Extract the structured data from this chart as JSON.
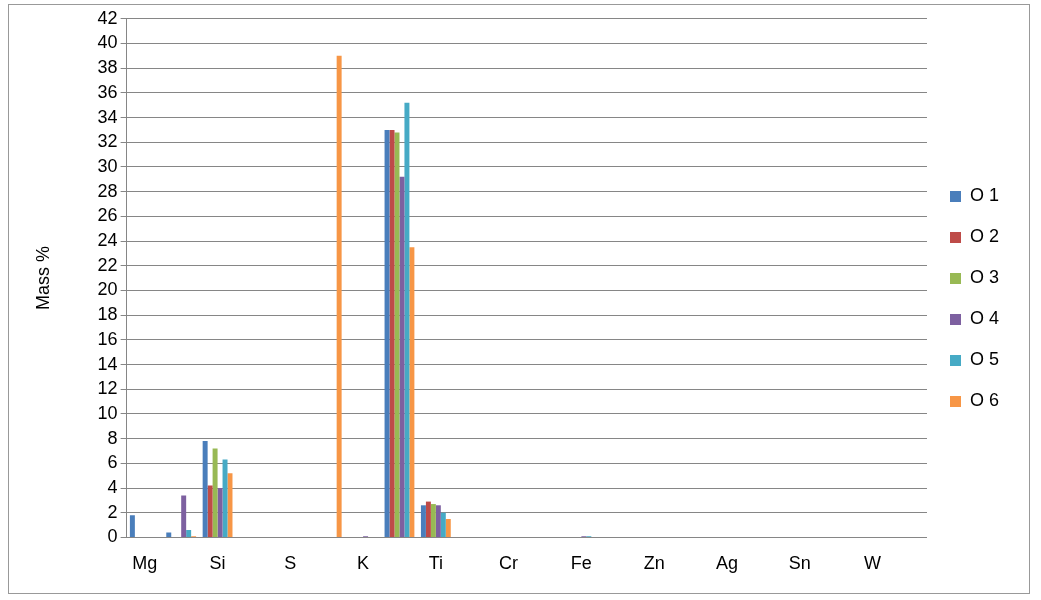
{
  "chart_data": {
    "type": "bar",
    "ylabel": "Mass %",
    "categories": [
      "Mg",
      null,
      "Si",
      null,
      "S",
      null,
      "K",
      null,
      "Ti",
      null,
      "Cr",
      null,
      "Fe",
      null,
      "Zn",
      null,
      "Ag",
      null,
      "Sn",
      null,
      "W",
      null
    ],
    "series": [
      {
        "name": "O 1",
        "color": "#4a7ebb",
        "values": [
          1.8,
          0.4,
          7.8,
          null,
          null,
          null,
          null,
          33,
          2.6,
          null,
          null,
          null,
          null,
          null,
          null,
          null,
          null,
          null,
          null,
          null,
          null,
          null
        ]
      },
      {
        "name": "O 2",
        "color": "#be4b48",
        "values": [
          null,
          null,
          4.2,
          null,
          null,
          null,
          null,
          33,
          2.9,
          null,
          null,
          null,
          null,
          null,
          null,
          null,
          null,
          null,
          null,
          null,
          null,
          null
        ]
      },
      {
        "name": "O 3",
        "color": "#98b954",
        "values": [
          null,
          null,
          7.2,
          null,
          null,
          null,
          null,
          32.8,
          2.7,
          null,
          null,
          null,
          null,
          null,
          null,
          null,
          null,
          null,
          null,
          null,
          null,
          null
        ]
      },
      {
        "name": "O 4",
        "color": "#7d60a0",
        "values": [
          null,
          3.4,
          4.0,
          null,
          null,
          null,
          0.1,
          29.2,
          2.6,
          null,
          null,
          null,
          0.1,
          null,
          null,
          null,
          null,
          null,
          null,
          null,
          null,
          null
        ]
      },
      {
        "name": "O 5",
        "color": "#46aac5",
        "values": [
          null,
          0.6,
          6.3,
          null,
          null,
          null,
          null,
          35.2,
          2.0,
          null,
          null,
          null,
          0.1,
          null,
          null,
          null,
          null,
          null,
          null,
          null,
          null,
          null
        ]
      },
      {
        "name": "O 6",
        "color": "#f79646",
        "values": [
          null,
          0.1,
          5.2,
          null,
          null,
          39,
          null,
          23.5,
          1.5,
          null,
          null,
          null,
          null,
          null,
          null,
          null,
          null,
          null,
          null,
          null,
          null,
          null
        ]
      }
    ],
    "ylim": [
      0,
      42
    ],
    "yticks": [
      0,
      2,
      4,
      6,
      8,
      10,
      12,
      14,
      16,
      18,
      20,
      22,
      24,
      26,
      28,
      30,
      32,
      34,
      36,
      38,
      40,
      42
    ],
    "grid": "y",
    "legend": "right"
  }
}
